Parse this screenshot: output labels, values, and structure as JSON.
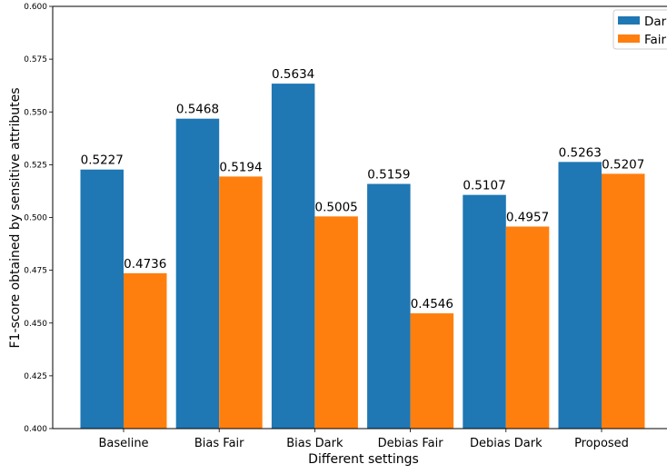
{
  "chart_data": {
    "type": "bar",
    "title": "",
    "xlabel": "Different settings",
    "ylabel": "F1-score obtained by sensitive attributes",
    "ylim": [
      0.4,
      0.6
    ],
    "yticks": [
      "0.400",
      "0.425",
      "0.450",
      "0.475",
      "0.500",
      "0.525",
      "0.550",
      "0.575",
      "0.600"
    ],
    "categories": [
      "Baseline",
      "Bias Fair",
      "Bias Dark",
      "Debias Fair",
      "Debias Dark",
      "Proposed"
    ],
    "series": [
      {
        "name": "Dark",
        "color": "#1f77b4",
        "values": [
          0.5227,
          0.5468,
          0.5634,
          0.5159,
          0.5107,
          0.5263
        ],
        "labels": [
          "0.5227",
          "0.5468",
          "0.5634",
          "0.5159",
          "0.5107",
          "0.5263"
        ]
      },
      {
        "name": "Fair",
        "color": "#ff7f0e",
        "values": [
          0.4736,
          0.5194,
          0.5005,
          0.4546,
          0.4957,
          0.5207
        ],
        "labels": [
          "0.4736",
          "0.5194",
          "0.5005",
          "0.4546",
          "0.4957",
          "0.5207"
        ]
      }
    ],
    "grid": false,
    "legend_position": "top-right"
  }
}
